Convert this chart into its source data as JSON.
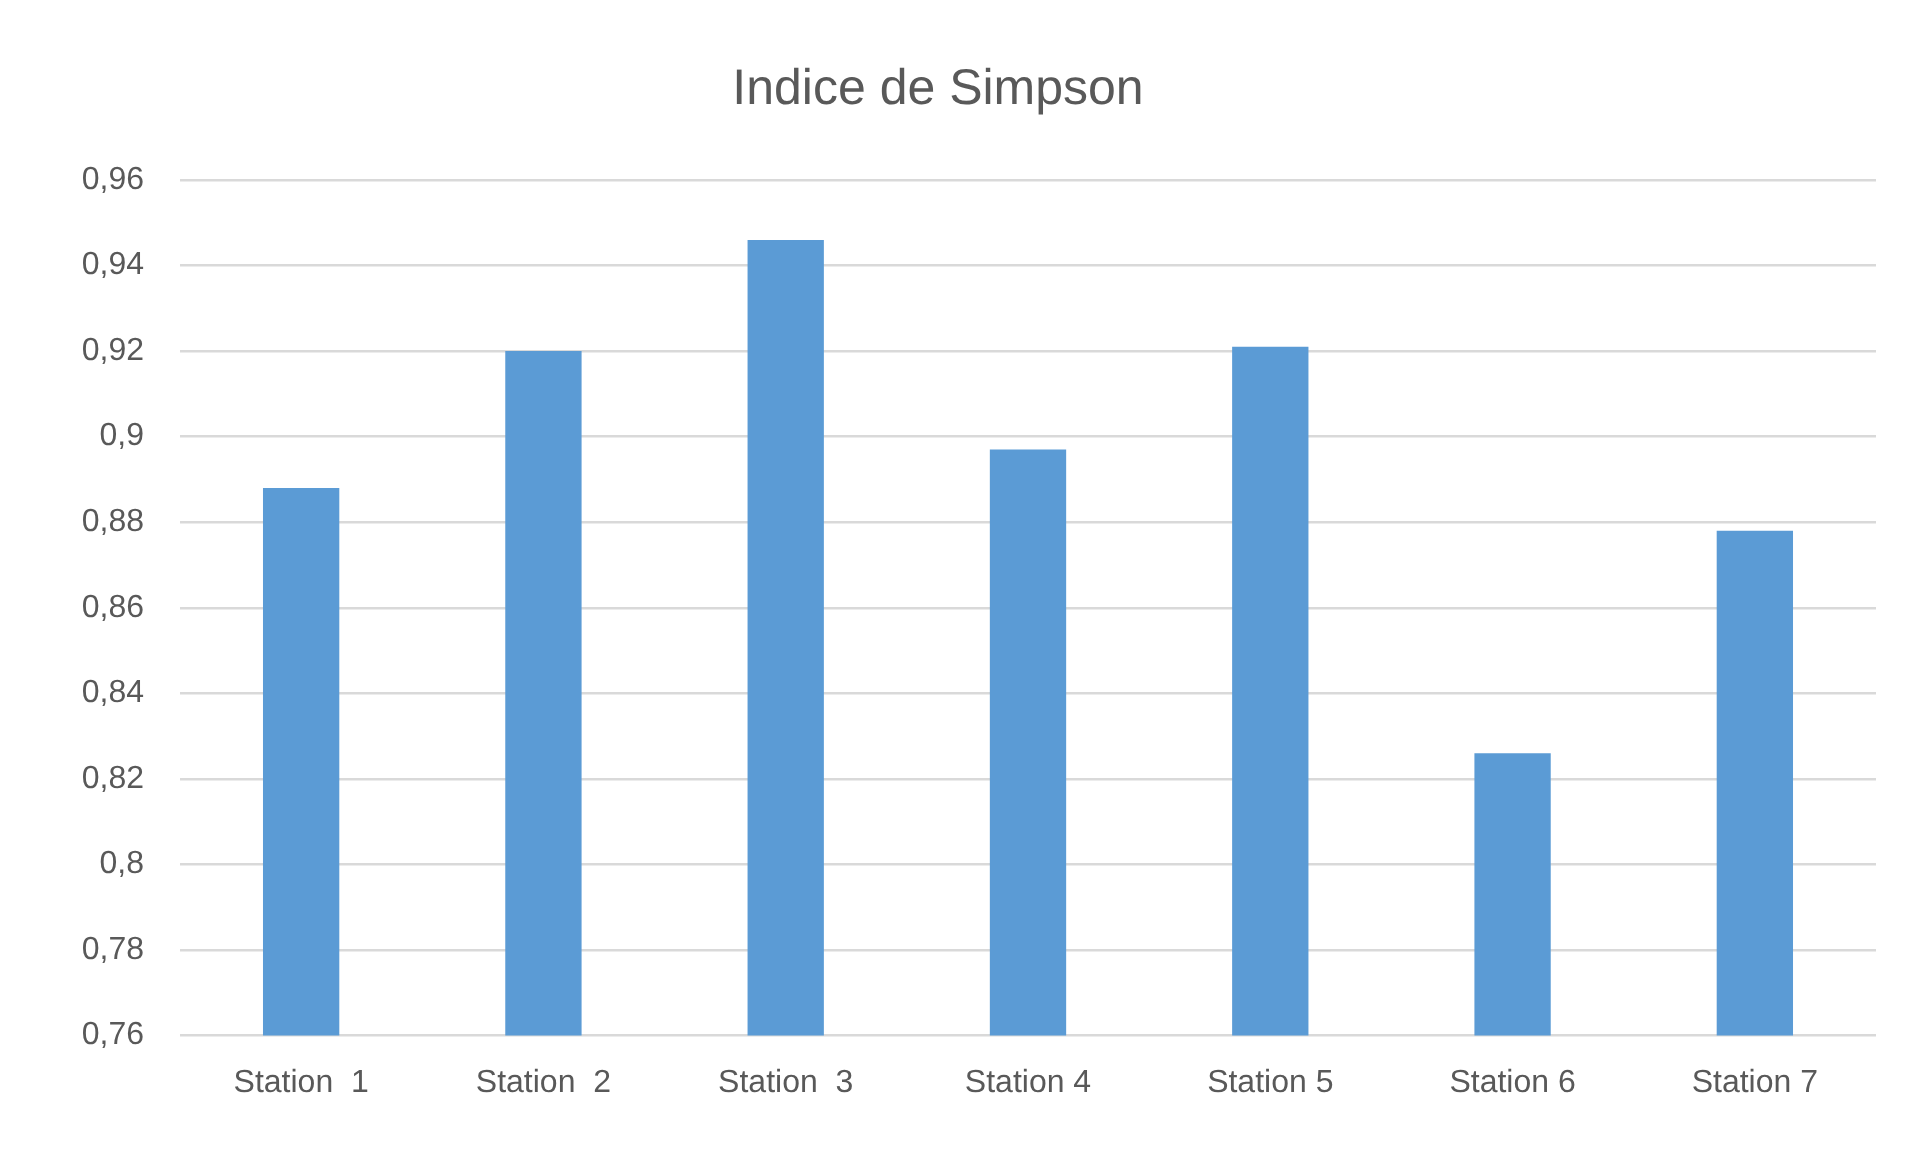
{
  "chart_data": {
    "type": "bar",
    "title": "Indice de Simpson",
    "categories": [
      "Station  1",
      "Station  2",
      "Station  3",
      "Station 4",
      "Station 5",
      "Station 6",
      "Station 7"
    ],
    "values": [
      0.888,
      0.92,
      0.946,
      0.897,
      0.921,
      0.826,
      0.878
    ],
    "color": "#5b9bd5",
    "ylim": [
      0.76,
      0.96
    ],
    "yticks": [
      {
        "value": 0.76,
        "label": "0,76"
      },
      {
        "value": 0.78,
        "label": "0,78"
      },
      {
        "value": 0.8,
        "label": "0,8"
      },
      {
        "value": 0.82,
        "label": "0,82"
      },
      {
        "value": 0.84,
        "label": "0,84"
      },
      {
        "value": 0.86,
        "label": "0,86"
      },
      {
        "value": 0.88,
        "label": "0,88"
      },
      {
        "value": 0.9,
        "label": "0,9"
      },
      {
        "value": 0.92,
        "label": "0,92"
      },
      {
        "value": 0.94,
        "label": "0,94"
      },
      {
        "value": 0.96,
        "label": "0,96"
      }
    ],
    "grid": "y"
  }
}
